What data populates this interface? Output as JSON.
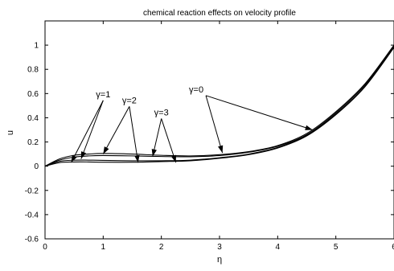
{
  "chart_data": {
    "type": "line",
    "title": "chemical reaction effects on velocity profile",
    "xlabel": "η",
    "ylabel": "u",
    "xlim": [
      0,
      6
    ],
    "ylim": [
      -0.6,
      1.2
    ],
    "xticks": [
      0,
      1,
      2,
      3,
      4,
      5,
      6
    ],
    "yticks": [
      -0.6,
      -0.4,
      -0.2,
      0,
      0.2,
      0.4,
      0.6,
      0.8,
      1
    ],
    "xtick_labels": [
      "0",
      "1",
      "2",
      "3",
      "4",
      "5",
      "6"
    ],
    "ytick_labels": [
      "-0.6",
      "-0.4",
      "-0.2",
      "0",
      "0.2",
      "0.4",
      "0.6",
      "0.8",
      "1"
    ],
    "grid": false,
    "series": [
      {
        "name": "γ=0",
        "x": [
          0,
          0.25,
          0.5,
          0.75,
          1,
          1.5,
          2,
          2.5,
          3,
          3.5,
          4,
          4.5,
          5,
          5.5,
          6
        ],
        "y": [
          0,
          0.06,
          0.09,
          0.1,
          0.105,
          0.1,
          0.09,
          0.085,
          0.095,
          0.12,
          0.17,
          0.27,
          0.45,
          0.68,
          1.0
        ]
      },
      {
        "name": "γ=1",
        "x": [
          0,
          0.25,
          0.5,
          0.75,
          1,
          1.5,
          2,
          2.5,
          3,
          3.5,
          4,
          4.5,
          5,
          5.5,
          6
        ],
        "y": [
          0,
          0.05,
          0.075,
          0.085,
          0.088,
          0.085,
          0.08,
          0.078,
          0.088,
          0.115,
          0.165,
          0.26,
          0.44,
          0.67,
          0.99
        ]
      },
      {
        "name": "γ=2",
        "x": [
          0,
          0.25,
          0.5,
          0.75,
          1,
          1.5,
          2,
          2.5,
          3,
          3.5,
          4,
          4.5,
          5,
          5.5,
          6
        ],
        "y": [
          0,
          0.04,
          0.05,
          0.05,
          0.048,
          0.045,
          0.045,
          0.05,
          0.07,
          0.1,
          0.155,
          0.255,
          0.43,
          0.66,
          0.985
        ]
      },
      {
        "name": "γ=3",
        "x": [
          0,
          0.25,
          0.5,
          0.75,
          1,
          1.5,
          2,
          2.5,
          3,
          3.5,
          4,
          4.5,
          5,
          5.5,
          6
        ],
        "y": [
          0,
          0.03,
          0.035,
          0.035,
          0.033,
          0.033,
          0.038,
          0.045,
          0.065,
          0.095,
          0.15,
          0.25,
          0.425,
          0.655,
          0.98
        ]
      }
    ],
    "annotations": [
      {
        "text": "γ=1",
        "at": [
          1.0,
          0.57
        ],
        "targets": [
          [
            0.45,
            0.03
          ],
          [
            0.62,
            0.06
          ]
        ]
      },
      {
        "text": "γ=2",
        "at": [
          1.45,
          0.52
        ],
        "targets": [
          [
            1.0,
            0.1
          ],
          [
            1.6,
            0.03
          ]
        ]
      },
      {
        "text": "γ=3",
        "at": [
          2.0,
          0.42
        ],
        "targets": [
          [
            1.85,
            0.08
          ],
          [
            2.25,
            0.03
          ]
        ]
      },
      {
        "text": "γ=0",
        "at": [
          2.6,
          0.61
        ],
        "targets": [
          [
            3.05,
            0.11
          ],
          [
            4.6,
            0.3
          ]
        ]
      }
    ]
  }
}
